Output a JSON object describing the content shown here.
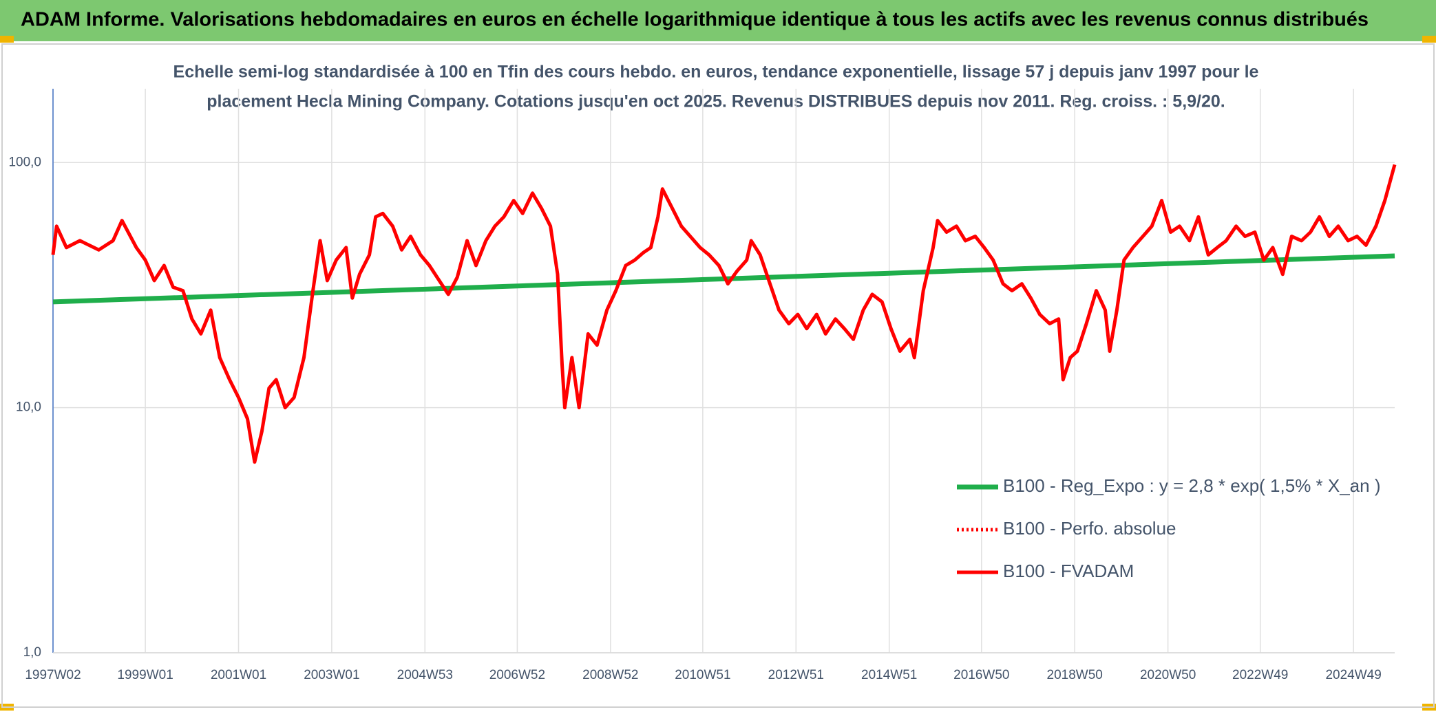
{
  "chart_data": {
    "type": "line",
    "title": "ADAM Informe. Valorisations hebdomadaires en euros en échelle logarithmique identique à tous les actifs avec les revenus connus distribués",
    "subtitle": [
      "Echelle semi-log standardisée à 100 en Tfin des cours hebdo. en euros, tendance exponentielle, lissage 57 j depuis janv 1997 pour le",
      "placement Hecla Mining Company. Cotations jusqu'en oct 2025. Revenus DISTRIBUES depuis nov 2011. Reg. croiss. : 5,9/20."
    ],
    "log_y": true,
    "grid": true,
    "legend": "right",
    "xlim": [
      "1997W02",
      "2025W43"
    ],
    "xticks": [
      "1997W02",
      "1999W01",
      "2001W01",
      "2003W01",
      "2004W53",
      "2006W52",
      "2008W52",
      "2010W51",
      "2012W51",
      "2014W51",
      "2016W50",
      "2018W50",
      "2020W50",
      "2022W49",
      "2024W49"
    ],
    "ylim": [
      1,
      200
    ],
    "yticks": [
      {
        "value": 1,
        "label": "1,0"
      },
      {
        "value": 10,
        "label": "10,0"
      },
      {
        "value": 100,
        "label": "100,0"
      }
    ],
    "series": [
      {
        "name": "B100 - Reg_Expo : y = 2,8 * exp( 1,5% *  X_an )",
        "color": "#1fae4b",
        "style": "solid",
        "x": [
          "1997W02",
          "2025W43"
        ],
        "values": [
          27,
          41.6
        ]
      },
      {
        "name": "B100 - Perfo. absolue",
        "color": "#ff0000",
        "style": "dotted"
      },
      {
        "name": "B100 - FVADAM",
        "color": "#ff0000",
        "style": "solid",
        "x": [
          "1997W02",
          "1997W06",
          "1997W17",
          "1997W32",
          "1998W01",
          "1998W17",
          "1998W27",
          "1998W43",
          "1999W01",
          "1999W11",
          "1999W22",
          "1999W32",
          "1999W43",
          "2000W01",
          "2000W11",
          "2000W22",
          "2000W32",
          "2000W43",
          "2001W01",
          "2001W11",
          "2001W19",
          "2001W27",
          "2001W35",
          "2001W43",
          "2002W01",
          "2002W11",
          "2002W22",
          "2002W32",
          "2002W40",
          "2002W48",
          "2003W06",
          "2003W17",
          "2003W24",
          "2003W32",
          "2003W43",
          "2003W50",
          "2004W06",
          "2004W17",
          "2004W27",
          "2004W37",
          "2004W48",
          "2005W06",
          "2005W17",
          "2005W27",
          "2005W37",
          "2005W48",
          "2006W06",
          "2006W17",
          "2006W27",
          "2006W37",
          "2006W48",
          "2007W06",
          "2007W17",
          "2007W27",
          "2007W37",
          "2007W45",
          "2007W50",
          "2008W01",
          "2008W09",
          "2008W17",
          "2008W27",
          "2008W37",
          "2008W48",
          "2009W06",
          "2009W17",
          "2009W27",
          "2009W37",
          "2009W45",
          "2010W01",
          "2010W06",
          "2010W17",
          "2010W27",
          "2010W37",
          "2010W48",
          "2011W06",
          "2011W17",
          "2011W27",
          "2011W37",
          "2011W48",
          "2012W01",
          "2012W11",
          "2012W22",
          "2012W32",
          "2012W43",
          "2013W01",
          "2013W11",
          "2013W22",
          "2013W32",
          "2013W43",
          "2014W01",
          "2014W11",
          "2014W22",
          "2014W32",
          "2014W43",
          "2015W01",
          "2015W11",
          "2015W22",
          "2015W27",
          "2015W37",
          "2015W48",
          "2016W01",
          "2016W11",
          "2016W22",
          "2016W32",
          "2016W43",
          "2017W01",
          "2017W11",
          "2017W22",
          "2017W32",
          "2017W43",
          "2018W01",
          "2018W11",
          "2018W22",
          "2018W32",
          "2018W37",
          "2018W45",
          "2019W01",
          "2019W11",
          "2019W22",
          "2019W32",
          "2019W37",
          "2019W45",
          "2020W01",
          "2020W11",
          "2020W22",
          "2020W32",
          "2020W43",
          "2021W01",
          "2021W11",
          "2021W22",
          "2021W32",
          "2021W43",
          "2022W01",
          "2022W11",
          "2022W22",
          "2022W32",
          "2022W43",
          "2023W01",
          "2023W11",
          "2023W22",
          "2023W32",
          "2023W43",
          "2024W01",
          "2024W11",
          "2024W22",
          "2024W32",
          "2024W43",
          "2025W01",
          "2025W11",
          "2025W22",
          "2025W32",
          "2025W43"
        ],
        "values": [
          42,
          55,
          45,
          48,
          44,
          48,
          58,
          45,
          40,
          33,
          38,
          31,
          30,
          23,
          20,
          25,
          16,
          13,
          11,
          9,
          6,
          8,
          12,
          13,
          10,
          11,
          16,
          30,
          48,
          33,
          40,
          45,
          28,
          35,
          42,
          60,
          62,
          55,
          44,
          50,
          42,
          38,
          33,
          29,
          34,
          48,
          38,
          48,
          55,
          60,
          70,
          62,
          75,
          65,
          55,
          35,
          15,
          10,
          16,
          10,
          20,
          18,
          25,
          30,
          38,
          40,
          43,
          45,
          60,
          78,
          65,
          55,
          50,
          45,
          42,
          38,
          32,
          36,
          40,
          48,
          42,
          32,
          25,
          22,
          24,
          21,
          24,
          20,
          23,
          21,
          19,
          25,
          29,
          27,
          21,
          17,
          19,
          16,
          30,
          45,
          58,
          52,
          55,
          48,
          50,
          45,
          40,
          32,
          30,
          32,
          28,
          24,
          22,
          23,
          13,
          16,
          17,
          22,
          30,
          25,
          17,
          25,
          40,
          45,
          50,
          55,
          70,
          52,
          55,
          48,
          60,
          42,
          45,
          48,
          55,
          50,
          52,
          40,
          45,
          35,
          50,
          48,
          52,
          60,
          50,
          55,
          48,
          50,
          46,
          55,
          70,
          98
        ]
      }
    ]
  }
}
